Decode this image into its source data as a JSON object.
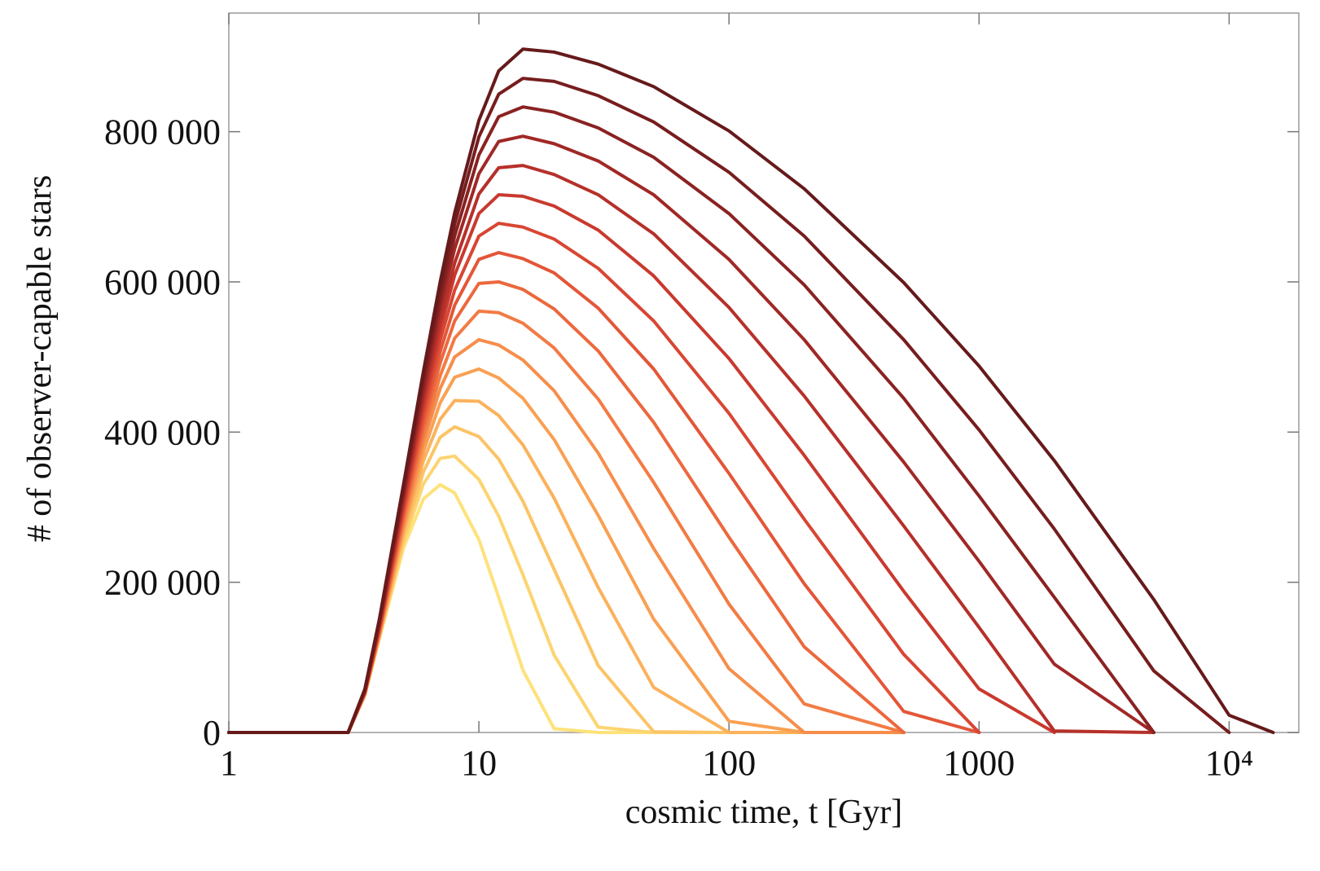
{
  "chart_data": {
    "type": "line",
    "xlabel": "cosmic time, t [Gyr]",
    "ylabel": "# of observer-capable stars",
    "xscale": "log",
    "xlim": [
      1,
      19000
    ],
    "ylim": [
      0,
      958000
    ],
    "xticks": [
      1,
      10,
      100,
      1000,
      {
        "value": 10000,
        "label": "10⁴"
      }
    ],
    "yticks": [
      0,
      {
        "value": 200000,
        "label": "200 000"
      },
      {
        "value": 400000,
        "label": "400 000"
      },
      {
        "value": 600000,
        "label": "600 000"
      },
      {
        "value": 800000,
        "label": "800 000"
      }
    ],
    "grid": false,
    "x": [
      1,
      3,
      3.5,
      4,
      5,
      6,
      7,
      8,
      10,
      12,
      15,
      20,
      30,
      50,
      100,
      200,
      500,
      1000,
      2000,
      5000,
      10000,
      15000
    ],
    "series": [
      {
        "color": "#fee27a",
        "values": [
          0,
          0,
          50000,
          125000,
          246000,
          311000,
          330000,
          319000,
          257000,
          180000,
          83000,
          5000,
          0,
          0,
          0,
          0,
          0,
          null,
          null,
          null,
          null,
          null
        ]
      },
      {
        "color": "#fdd470",
        "values": [
          0,
          0,
          50000,
          126000,
          253000,
          331000,
          365000,
          368000,
          337000,
          288000,
          210000,
          103000,
          7000,
          0,
          0,
          0,
          0,
          null,
          null,
          null,
          null,
          null
        ]
      },
      {
        "color": "#fcc466",
        "values": [
          0,
          0,
          50000,
          127000,
          259000,
          347000,
          393000,
          407000,
          394000,
          364000,
          308000,
          217000,
          89000,
          1000,
          0,
          0,
          0,
          null,
          null,
          null,
          null,
          null
        ]
      },
      {
        "color": "#fbb25c",
        "values": [
          0,
          0,
          50000,
          129000,
          267000,
          362000,
          417000,
          442000,
          441000,
          422000,
          383000,
          312000,
          193000,
          60000,
          0,
          0,
          0,
          null,
          null,
          null,
          null,
          null
        ]
      },
      {
        "color": "#f9a053",
        "values": [
          0,
          0,
          51000,
          129000,
          272000,
          374000,
          439000,
          473000,
          484000,
          472000,
          445000,
          390000,
          289000,
          151000,
          15000,
          0,
          0,
          null,
          null,
          null,
          null,
          null
        ]
      },
      {
        "color": "#f68e4b",
        "values": [
          0,
          0,
          51000,
          132000,
          277000,
          386000,
          458000,
          500000,
          523000,
          516000,
          496000,
          455000,
          372000,
          245000,
          85000,
          0,
          0,
          null,
          null,
          null,
          null,
          null
        ]
      },
      {
        "color": "#f27b44",
        "values": [
          0,
          0,
          52000,
          133000,
          283000,
          396000,
          475000,
          525000,
          561000,
          559000,
          545000,
          512000,
          444000,
          333000,
          171000,
          38000,
          0,
          null,
          null,
          null,
          null,
          null
        ]
      },
      {
        "color": "#ec683e",
        "values": [
          0,
          0,
          52000,
          135000,
          289000,
          407000,
          492000,
          548000,
          598000,
          600000,
          590000,
          564000,
          508000,
          413000,
          260000,
          114000,
          0,
          null,
          null,
          null,
          null,
          null
        ]
      },
      {
        "color": "#e35638",
        "values": [
          0,
          0,
          53000,
          137000,
          294000,
          417000,
          507000,
          569000,
          630000,
          639000,
          631000,
          612000,
          565000,
          484000,
          345000,
          198000,
          28000,
          0,
          null,
          null,
          null,
          null
        ]
      },
      {
        "color": "#d84633",
        "values": [
          0,
          0,
          54000,
          139000,
          299000,
          427000,
          522000,
          589000,
          661000,
          678000,
          673000,
          657000,
          618000,
          548000,
          425000,
          284000,
          104000,
          0,
          null,
          null,
          null,
          null
        ]
      },
      {
        "color": "#c9392e",
        "values": [
          0,
          0,
          54000,
          141000,
          305000,
          436000,
          536000,
          609000,
          691000,
          716000,
          714000,
          701000,
          669000,
          608000,
          498000,
          369000,
          188000,
          58000,
          0,
          null,
          null,
          null
        ]
      },
      {
        "color": "#b6302a",
        "values": [
          0,
          0,
          55000,
          142000,
          310000,
          445000,
          548000,
          625000,
          717000,
          752000,
          755000,
          743000,
          716000,
          664000,
          566000,
          448000,
          275000,
          140000,
          2000,
          0,
          null,
          null
        ]
      },
      {
        "color": "#a02826",
        "values": [
          0,
          0,
          56000,
          145000,
          316000,
          453000,
          564000,
          644000,
          744000,
          787000,
          794000,
          784000,
          761000,
          716000,
          630000,
          523000,
          360000,
          228000,
          91000,
          0,
          null,
          null
        ]
      },
      {
        "color": "#8a2222",
        "values": [
          0,
          0,
          57000,
          147000,
          321000,
          464000,
          575000,
          661000,
          769000,
          820000,
          833000,
          826000,
          805000,
          766000,
          691000,
          596000,
          445000,
          315000,
          180000,
          0,
          null,
          null
        ]
      },
      {
        "color": "#771d1e",
        "values": [
          0,
          0,
          57000,
          150000,
          327000,
          472000,
          587000,
          677000,
          793000,
          850000,
          871000,
          867000,
          848000,
          813000,
          746000,
          661000,
          523000,
          403000,
          271000,
          82000,
          0,
          null
        ]
      },
      {
        "color": "#661a1b",
        "values": [
          0,
          0,
          58000,
          151000,
          331000,
          481000,
          600000,
          692000,
          815000,
          881000,
          910000,
          906000,
          890000,
          860000,
          801000,
          724000,
          599000,
          488000,
          362000,
          177000,
          23000,
          0
        ]
      }
    ]
  }
}
